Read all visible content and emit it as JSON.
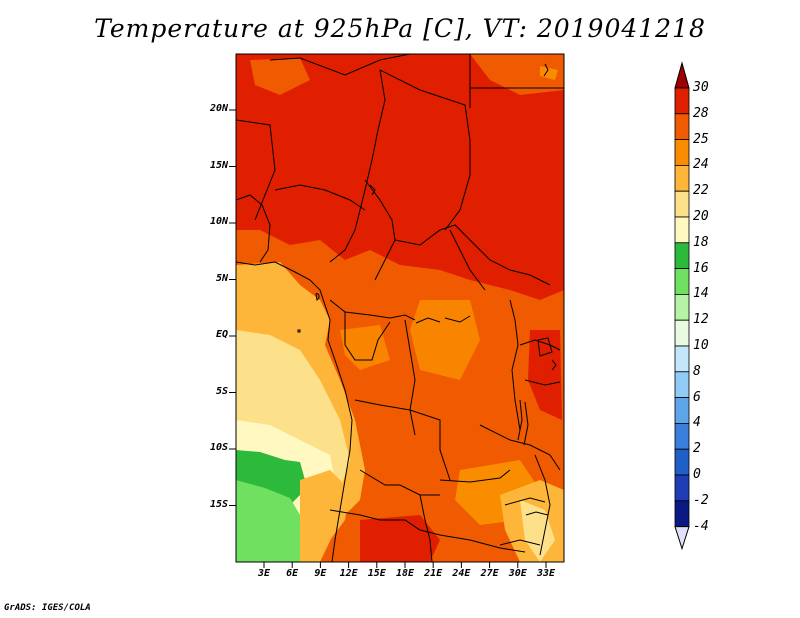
{
  "title": "Temperature at 925hPa [C], VT: 2019041218",
  "credit": "GrADS: IGES/COLA",
  "map": {
    "lat_labels": [
      "20N",
      "15N",
      "10N",
      "5N",
      "EQ",
      "5S",
      "10S",
      "15S"
    ],
    "lon_labels": [
      "3E",
      "6E",
      "9E",
      "12E",
      "15E",
      "18E",
      "21E",
      "24E",
      "27E",
      "30E",
      "33E"
    ]
  },
  "colorbar": {
    "labels": [
      "30",
      "28",
      "25",
      "24",
      "22",
      "20",
      "18",
      "16",
      "14",
      "12",
      "10",
      "8",
      "6",
      "4",
      "2",
      "0",
      "-2",
      "-4"
    ],
    "colors": [
      "#a00000",
      "#e01e00",
      "#f05a00",
      "#fa8c00",
      "#fdb53a",
      "#fde08a",
      "#fff8c0",
      "#2db93c",
      "#70e060",
      "#b4f4a4",
      "#e8fbe0",
      "#c4e6fa",
      "#90cbf5",
      "#5ea6ea",
      "#3a7fdc",
      "#1e5fc8",
      "#1e3cb4",
      "#0a1a82",
      "#e0e0f8"
    ]
  }
}
